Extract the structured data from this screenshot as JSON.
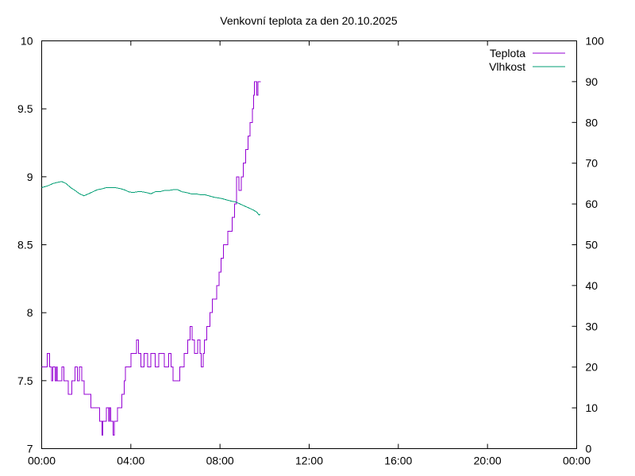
{
  "chart_data": {
    "type": "line",
    "title": "Venkovní teplota za den 20.10.2025",
    "xlabel": "",
    "ylabel": "",
    "y2label": "",
    "x_range": [
      0,
      24
    ],
    "x_tick_labels": [
      "00:00",
      "04:00",
      "08:00",
      "12:00",
      "16:00",
      "20:00",
      "00:00"
    ],
    "x_tick_values": [
      0,
      4,
      8,
      12,
      16,
      20,
      24
    ],
    "ylim": [
      7,
      10
    ],
    "y_tick_values": [
      7,
      7.5,
      8,
      8.5,
      9,
      9.5,
      10
    ],
    "y_tick_labels": [
      "7",
      "7.5",
      "8",
      "8.5",
      "9",
      "9.5",
      "10"
    ],
    "y2lim": [
      0,
      100
    ],
    "y2_tick_values": [
      0,
      10,
      20,
      30,
      40,
      50,
      60,
      70,
      80,
      90,
      100
    ],
    "y2_tick_labels": [
      "0",
      "10",
      "20",
      "30",
      "40",
      "50",
      "60",
      "70",
      "80",
      "90",
      "100"
    ],
    "grid": false,
    "legend_placement": "top-right",
    "series": [
      {
        "name": "Teplota",
        "axis": "left",
        "color": "#9400d3",
        "step": true,
        "x": [
          0,
          0.25,
          0.35,
          0.45,
          0.5,
          0.6,
          0.65,
          0.7,
          0.8,
          0.9,
          1.0,
          1.05,
          1.1,
          1.2,
          1.3,
          1.35,
          1.5,
          1.6,
          1.7,
          1.8,
          1.9,
          2.0,
          2.1,
          2.2,
          2.4,
          2.6,
          2.7,
          2.75,
          2.85,
          2.9,
          3.0,
          3.05,
          3.1,
          3.2,
          3.25,
          3.3,
          3.4,
          3.5,
          3.6,
          3.7,
          3.75,
          3.9,
          4.0,
          4.15,
          4.25,
          4.35,
          4.45,
          4.6,
          4.75,
          4.9,
          5.0,
          5.1,
          5.25,
          5.5,
          5.6,
          5.7,
          5.8,
          5.9,
          6.0,
          6.1,
          6.2,
          6.4,
          6.55,
          6.65,
          6.75,
          6.85,
          6.9,
          7.0,
          7.1,
          7.15,
          7.25,
          7.3,
          7.4,
          7.5,
          7.55,
          7.65,
          7.75,
          7.85,
          7.95,
          8.05,
          8.15,
          8.25,
          8.35,
          8.45,
          8.55,
          8.65,
          8.75,
          8.85,
          8.95,
          9.05,
          9.15,
          9.25,
          9.35,
          9.45,
          9.5,
          9.55,
          9.6,
          9.65,
          9.7,
          9.75,
          9.78,
          9.82
        ],
        "y": [
          7.6,
          7.7,
          7.6,
          7.5,
          7.6,
          7.5,
          7.6,
          7.5,
          7.5,
          7.6,
          7.5,
          7.5,
          7.5,
          7.4,
          7.4,
          7.5,
          7.6,
          7.5,
          7.6,
          7.5,
          7.4,
          7.4,
          7.4,
          7.3,
          7.3,
          7.2,
          7.1,
          7.2,
          7.2,
          7.3,
          7.2,
          7.3,
          7.2,
          7.1,
          7.2,
          7.2,
          7.3,
          7.3,
          7.4,
          7.5,
          7.6,
          7.6,
          7.7,
          7.7,
          7.8,
          7.7,
          7.6,
          7.7,
          7.6,
          7.7,
          7.7,
          7.6,
          7.7,
          7.6,
          7.6,
          7.7,
          7.6,
          7.5,
          7.5,
          7.5,
          7.6,
          7.7,
          7.8,
          7.9,
          7.8,
          7.7,
          7.7,
          7.8,
          7.7,
          7.6,
          7.7,
          7.8,
          7.9,
          7.9,
          8.0,
          8.1,
          8.1,
          8.2,
          8.3,
          8.4,
          8.5,
          8.5,
          8.6,
          8.6,
          8.7,
          8.8,
          9.0,
          8.9,
          9.0,
          9.1,
          9.2,
          9.3,
          9.4,
          9.5,
          9.6,
          9.7,
          9.7,
          9.6,
          9.7,
          9.7,
          9.7,
          9.7
        ]
      },
      {
        "name": "Vlhkost",
        "axis": "right",
        "color": "#009e73",
        "step": false,
        "x": [
          0,
          0.3,
          0.5,
          0.7,
          0.9,
          1.1,
          1.3,
          1.5,
          1.7,
          1.9,
          2.1,
          2.3,
          2.5,
          2.7,
          2.9,
          3.1,
          3.3,
          3.5,
          3.7,
          3.9,
          4.1,
          4.3,
          4.5,
          4.7,
          4.9,
          5.1,
          5.3,
          5.5,
          5.7,
          5.9,
          6.1,
          6.3,
          6.5,
          6.7,
          6.9,
          7.1,
          7.3,
          7.5,
          7.7,
          7.9,
          8.1,
          8.3,
          8.5,
          8.7,
          8.9,
          9.1,
          9.3,
          9.5,
          9.65,
          9.75,
          9.8
        ],
        "y": [
          64,
          64.5,
          65,
          65.3,
          65.5,
          65,
          64,
          63.3,
          62.5,
          62,
          62.5,
          63,
          63.5,
          63.7,
          64,
          64,
          64,
          63.8,
          63.5,
          63,
          62.8,
          63,
          63,
          62.8,
          62.5,
          63,
          63,
          63.3,
          63.3,
          63.5,
          63.5,
          63,
          62.8,
          62.5,
          62.5,
          62.3,
          62.3,
          62,
          61.7,
          61.5,
          61.3,
          61,
          60.7,
          60.5,
          60,
          59.5,
          59,
          58.5,
          58,
          57.3,
          57.5
        ]
      }
    ]
  }
}
